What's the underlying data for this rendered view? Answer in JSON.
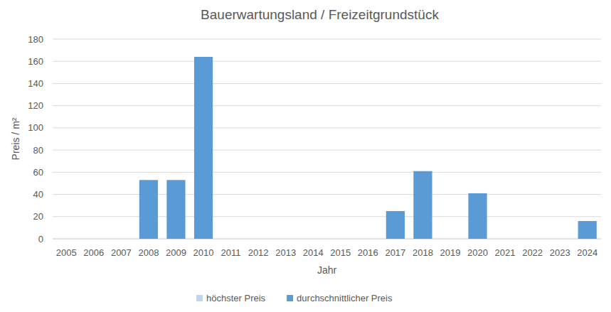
{
  "chart_data": {
    "type": "bar",
    "title": "Bauerwartungsland / Freizeitgrundstück",
    "x_label": "Jahr",
    "y_label": "Preis / m²",
    "categories": [
      "2005",
      "2006",
      "2007",
      "2008",
      "2009",
      "2010",
      "2011",
      "2012",
      "2013",
      "2014",
      "2015",
      "2016",
      "2017",
      "2018",
      "2019",
      "2020",
      "2021",
      "2022",
      "2023",
      "2024"
    ],
    "series": [
      {
        "name": "höchster Preis",
        "color": "#bdd7ee",
        "values": [
          null,
          null,
          null,
          null,
          null,
          null,
          null,
          null,
          null,
          null,
          null,
          null,
          null,
          null,
          null,
          null,
          null,
          null,
          null,
          null
        ]
      },
      {
        "name": "durchschnittlicher Preis",
        "color": "#5b9bd5",
        "values": [
          null,
          null,
          null,
          53,
          53,
          164,
          null,
          null,
          null,
          null,
          null,
          null,
          25,
          61,
          null,
          41,
          null,
          null,
          null,
          16
        ]
      }
    ],
    "ylim": [
      0,
      180
    ],
    "yticks": [
      0,
      20,
      40,
      60,
      80,
      100,
      120,
      140,
      160,
      180
    ],
    "grid": true,
    "legend": "bottom"
  }
}
